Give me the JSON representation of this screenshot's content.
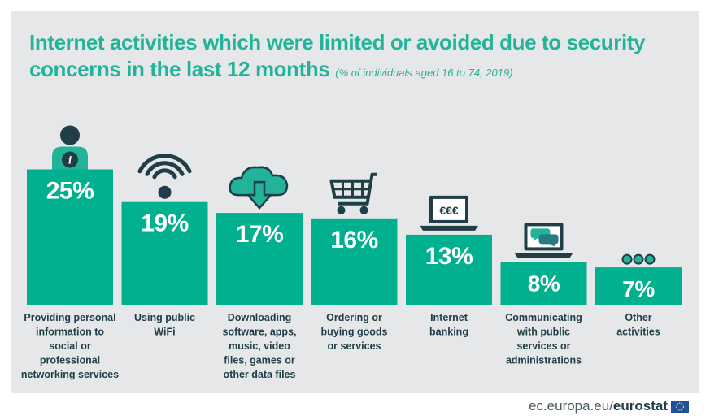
{
  "header": {
    "title": "Internet activities which were limited or avoided due to security concerns in the last 12 months",
    "subtitle": "(% of individuals aged 16 to 74, 2019)"
  },
  "chart_data": {
    "type": "bar",
    "categories": [
      "Providing personal information to social or professional networking services",
      "Using public WiFi",
      "Downloading software, apps, music, video files, games or other data files",
      "Ordering or buying goods or services",
      "Internet banking",
      "Communicating with public services or administrations",
      "Other activities"
    ],
    "category_lines": [
      [
        "Providing personal",
        "information to",
        "social or",
        "professional",
        "networking services"
      ],
      [
        "Using public",
        "WiFi"
      ],
      [
        "Downloading",
        "software, apps,",
        "music, video",
        "files, games or",
        "other data files"
      ],
      [
        "Ordering or",
        "buying goods",
        "or services"
      ],
      [
        "Internet",
        "banking"
      ],
      [
        "Communicating",
        "with public",
        "services or",
        "administrations"
      ],
      [
        "Other",
        "activities"
      ]
    ],
    "values": [
      25,
      19,
      17,
      16,
      13,
      8,
      7
    ],
    "value_labels": [
      "25%",
      "19%",
      "17%",
      "16%",
      "13%",
      "8%",
      "7%"
    ],
    "ylim": [
      0,
      25
    ],
    "grid": false,
    "bar_color": "#00b08f",
    "icons": [
      "person-info-icon",
      "wifi-icon",
      "cloud-download-icon",
      "shopping-cart-icon",
      "laptop-euro-icon",
      "laptop-chat-icon",
      "dots-icon"
    ],
    "icon_texts": [
      "i",
      "",
      "",
      "",
      "€€€",
      "",
      ""
    ]
  },
  "footer": {
    "site": "ec.europa.eu/",
    "brand": "eurostat"
  },
  "colors": {
    "accent": "#22b39a",
    "bar": "#00b08f",
    "dark": "#1f3e47",
    "background": "#e6e7e8"
  }
}
